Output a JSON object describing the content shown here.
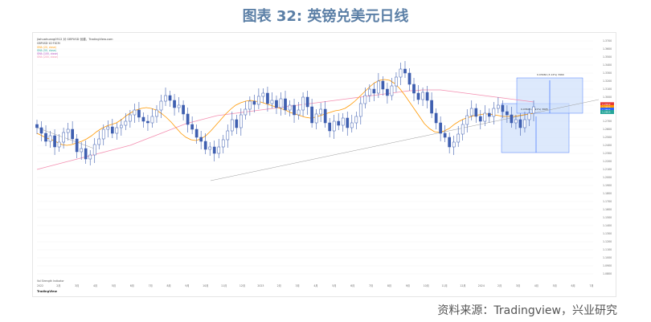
{
  "title": "图表 32: 英镑兑美元日线",
  "source": "资料来源：Tradingview，兴业研究",
  "tv_logo": "TradingView",
  "chart_header": {
    "line1": "jiahuahuang0912 对 GBPUSD 创建，TradingView.com",
    "line2": "GBPUSD·1D·FXCM"
  },
  "indicators": [
    {
      "label": "SMA (20, close)",
      "color": "#ff9800"
    },
    {
      "label": "SMA (50, close)",
      "color": "#26a69a"
    },
    {
      "label": "SMA (100, close)",
      "color": "#ab47bc"
    },
    {
      "label": "SMA (200, close)",
      "color": "#f48fb1"
    }
  ],
  "bottom_note": "Vol  Strength Indicator",
  "chart_data": {
    "type": "candlestick",
    "instrument": "GBPUSD",
    "timeframe": "1D",
    "y_ticks": [
      1.37,
      1.36,
      1.35,
      1.34,
      1.33,
      1.32,
      1.31,
      1.3,
      1.29,
      1.28,
      1.27,
      1.26,
      1.25,
      1.24,
      1.23,
      1.22,
      1.21,
      1.2,
      1.19,
      1.18,
      1.17,
      1.16,
      1.15,
      1.14,
      1.13,
      1.12,
      1.11,
      1.1,
      1.09,
      1.08
    ],
    "ylim": [
      1.075,
      1.375
    ],
    "x_ticks": [
      "2022",
      "2月",
      "3月",
      "4月",
      "5月",
      "6月",
      "7月",
      "8月",
      "9月",
      "10月",
      "11月",
      "12月",
      "2023",
      "2月",
      "3月",
      "4月",
      "5月",
      "6月",
      "7月",
      "8月",
      "9月",
      "10月",
      "11月",
      "12月",
      "2024",
      "2月",
      "3月",
      "4月",
      "5月",
      "6月",
      "7月"
    ],
    "close": [
      1.262,
      1.255,
      1.245,
      1.252,
      1.238,
      1.244,
      1.256,
      1.26,
      1.248,
      1.232,
      1.236,
      1.223,
      1.228,
      1.241,
      1.248,
      1.26,
      1.263,
      1.255,
      1.262,
      1.265,
      1.27,
      1.278,
      1.284,
      1.275,
      1.27,
      1.268,
      1.276,
      1.284,
      1.295,
      1.302,
      1.296,
      1.287,
      1.29,
      1.279,
      1.266,
      1.26,
      1.25,
      1.245,
      1.235,
      1.238,
      1.23,
      1.238,
      1.247,
      1.258,
      1.272,
      1.262,
      1.278,
      1.285,
      1.295,
      1.291,
      1.301,
      1.305,
      1.292,
      1.296,
      1.287,
      1.298,
      1.284,
      1.29,
      1.278,
      1.284,
      1.3,
      1.288,
      1.268,
      1.279,
      1.285,
      1.268,
      1.258,
      1.27,
      1.265,
      1.274,
      1.262,
      1.268,
      1.276,
      1.292,
      1.302,
      1.31,
      1.305,
      1.32,
      1.31,
      1.302,
      1.314,
      1.325,
      1.335,
      1.33,
      1.316,
      1.305,
      1.297,
      1.306,
      1.296,
      1.28,
      1.268,
      1.255,
      1.25,
      1.238,
      1.244,
      1.254,
      1.266,
      1.277,
      1.286,
      1.276,
      1.27,
      1.28,
      1.276,
      1.286,
      1.29,
      1.282,
      1.278,
      1.268,
      1.272,
      1.262,
      1.272,
      1.28,
      1.288
    ],
    "sma20": [
      1.255,
      1.252,
      1.249,
      1.247,
      1.244,
      1.241,
      1.24,
      1.241,
      1.243,
      1.245,
      1.248,
      1.252,
      1.257,
      1.261,
      1.264,
      1.266,
      1.268,
      1.272,
      1.277,
      1.281,
      1.284,
      1.286,
      1.287,
      1.286,
      1.284,
      1.28,
      1.275,
      1.269,
      1.262,
      1.255,
      1.25,
      1.247,
      1.246,
      1.248,
      1.252,
      1.258,
      1.265,
      1.272,
      1.279,
      1.285,
      1.29,
      1.293,
      1.295,
      1.296,
      1.295,
      1.294,
      1.292,
      1.29,
      1.288,
      1.286,
      1.284,
      1.281,
      1.279,
      1.277,
      1.275,
      1.274,
      1.275,
      1.277,
      1.279,
      1.281,
      1.283,
      1.284,
      1.286,
      1.29,
      1.295,
      1.301,
      1.307,
      1.313,
      1.318,
      1.321,
      1.322,
      1.321,
      1.317,
      1.311,
      1.303,
      1.294,
      1.285,
      1.276,
      1.267,
      1.261,
      1.257,
      1.256,
      1.258,
      1.261,
      1.266,
      1.27,
      1.273,
      1.275,
      1.277,
      1.278,
      1.279,
      1.279,
      1.278,
      1.277,
      1.276,
      1.276,
      1.276,
      1.277,
      1.278,
      1.279,
      1.28
    ],
    "sma200": [
      1.21,
      1.212,
      1.214,
      1.216,
      1.218,
      1.22,
      1.222,
      1.224,
      1.226,
      1.228,
      1.23,
      1.232,
      1.234,
      1.236,
      1.238,
      1.24,
      1.243,
      1.246,
      1.249,
      1.252,
      1.255,
      1.258,
      1.261,
      1.264,
      1.267,
      1.269,
      1.271,
      1.273,
      1.275,
      1.277,
      1.278,
      1.279,
      1.28,
      1.281,
      1.282,
      1.283,
      1.284,
      1.285,
      1.286,
      1.287,
      1.288,
      1.289,
      1.29,
      1.291,
      1.292,
      1.293,
      1.294,
      1.295,
      1.296,
      1.297,
      1.298,
      1.299,
      1.3,
      1.301,
      1.302,
      1.303,
      1.304,
      1.305,
      1.306,
      1.307,
      1.308,
      1.308,
      1.309,
      1.309,
      1.309,
      1.309,
      1.308,
      1.307,
      1.306,
      1.305,
      1.304,
      1.303,
      1.302,
      1.301,
      1.3,
      1.299,
      1.298,
      1.297,
      1.296,
      1.295,
      1.294
    ],
    "last_price": 1.2844,
    "price_tags": [
      {
        "value": 1.2912,
        "color": "#e53935"
      },
      {
        "value": 1.2875,
        "color": "#ff9800"
      },
      {
        "value": 1.2844,
        "color": "#2962ff"
      },
      {
        "value": 1.2815,
        "color": "#26a69a"
      }
    ],
    "projection_box": {
      "from_price": 1.231,
      "to_price": 1.299,
      "label_upper": "0.03960 (3.14%) 3960",
      "label_lower": "0.03605 (2.91%) 3605"
    }
  },
  "colors": {
    "title": "#5b7fa6",
    "candle": "#3f5fb0",
    "sma20": "#ff9800",
    "sma50": "#26a69a",
    "sma100": "#ab47bc",
    "sma200": "#f48fb1",
    "trendline": "#9e9e9e",
    "box_fill": "#cfe0fb",
    "box_stroke": "#2962ff"
  }
}
